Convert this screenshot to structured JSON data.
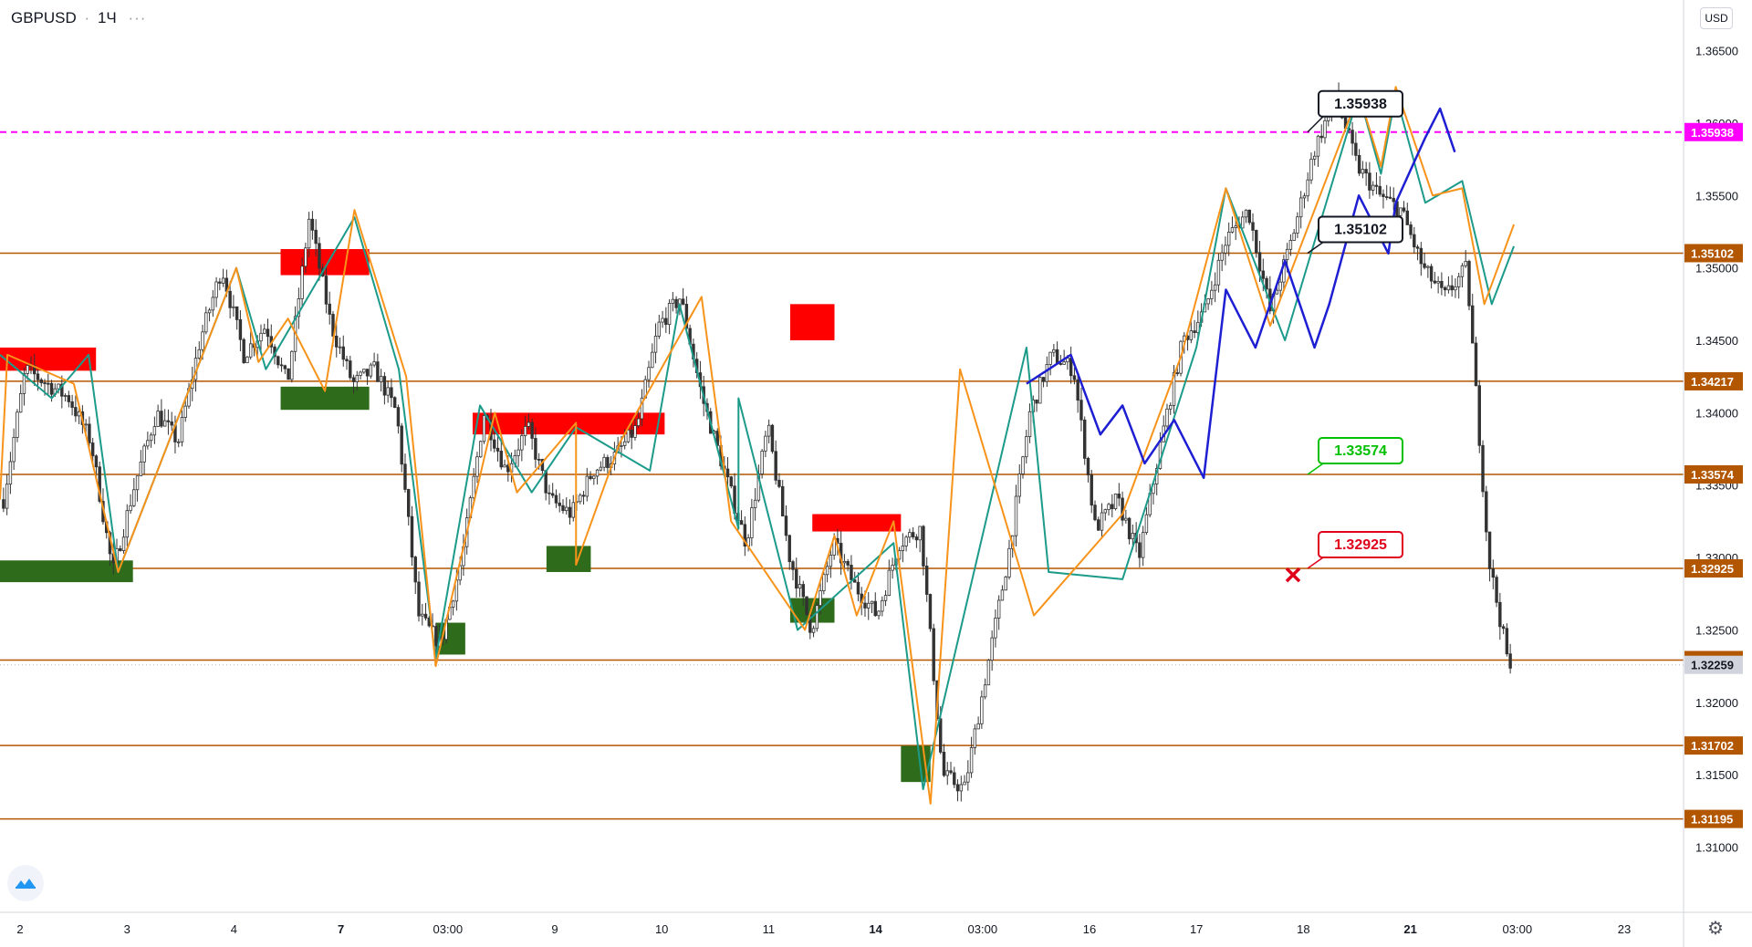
{
  "symbol": {
    "name": "GBPUSD",
    "interval": "1Ч",
    "more": "···"
  },
  "currency_button": "USD",
  "chart_data": {
    "type": "candlestick",
    "instrument": "GBPUSD",
    "interval": "1Ч",
    "ylim": [
      1.3055,
      1.3685
    ],
    "y_ticks": [
      "1.36500",
      "1.36000",
      "1.35500",
      "1.35000",
      "1.34500",
      "1.34000",
      "1.33500",
      "1.33000",
      "1.32500",
      "1.32000",
      "1.31500",
      "1.31000"
    ],
    "x_ticks": [
      "2",
      "3",
      "4",
      "7",
      "03:00",
      "9",
      "10",
      "11",
      "14",
      "03:00",
      "16",
      "17",
      "18",
      "21",
      "03:00",
      "23"
    ],
    "bold_x_ticks": [
      "7",
      "14",
      "21"
    ],
    "last_price": "1.32259",
    "price_path": [
      1.334,
      1.343,
      1.342,
      1.341,
      1.338,
      1.329,
      1.335,
      1.34,
      1.338,
      1.345,
      1.35,
      1.344,
      1.346,
      1.342,
      1.3535,
      1.346,
      1.342,
      1.343,
      1.34,
      1.326,
      1.324,
      1.33,
      1.34,
      1.336,
      1.339,
      1.334,
      1.333,
      1.336,
      1.337,
      1.339,
      1.346,
      1.348,
      1.341,
      1.336,
      1.331,
      1.339,
      1.33,
      1.325,
      1.331,
      1.328,
      1.326,
      1.331,
      1.332,
      1.315,
      1.314,
      1.322,
      1.33,
      1.34,
      1.344,
      1.343,
      1.332,
      1.334,
      1.33,
      1.338,
      1.345,
      1.347,
      1.352,
      1.354,
      1.347,
      1.352,
      1.358,
      1.362,
      1.357,
      1.355,
      1.354,
      1.35,
      1.348,
      1.35,
      1.33,
      1.322
    ],
    "horizontal_levels": [
      {
        "value": 1.35102,
        "label": "1.35102",
        "color": "#b35600"
      },
      {
        "value": 1.34217,
        "label": "1.34217",
        "color": "#b35600"
      },
      {
        "value": 1.33574,
        "label": "1.33574",
        "color": "#b35600"
      },
      {
        "value": 1.32925,
        "label": "1.32925",
        "color": "#b35600"
      },
      {
        "value": 1.32292,
        "label": "1.32292",
        "color": "#b35600"
      },
      {
        "value": 1.31702,
        "label": "1.31702",
        "color": "#b35600"
      },
      {
        "value": 1.31195,
        "label": "1.31195",
        "color": "#b35600"
      }
    ],
    "alert_level": {
      "value": 1.35938,
      "label": "1.35938",
      "color": "#ff00ff"
    },
    "last_price_label": {
      "value": 1.32259,
      "label": "1.32259",
      "color": "#d1d4dc"
    },
    "supply_zones": [
      {
        "t0": 0,
        "t1": 1.3,
        "hi": 1.3445,
        "lo": 1.3429
      },
      {
        "t0": 3.8,
        "t1": 5.0,
        "hi": 1.3513,
        "lo": 1.3495
      },
      {
        "t0": 10.7,
        "t1": 11.3,
        "hi": 1.3475,
        "lo": 1.345
      },
      {
        "t0": 6.4,
        "t1": 9.0,
        "hi": 1.34,
        "lo": 1.3385
      },
      {
        "t0": 11.0,
        "t1": 12.2,
        "hi": 1.333,
        "lo": 1.3318
      }
    ],
    "demand_zones": [
      {
        "t0": 0,
        "t1": 1.8,
        "hi": 1.3298,
        "lo": 1.3283
      },
      {
        "t0": 3.8,
        "t1": 5.0,
        "hi": 1.3418,
        "lo": 1.3402
      },
      {
        "t0": 5.9,
        "t1": 6.3,
        "hi": 1.3255,
        "lo": 1.3233
      },
      {
        "t0": 7.4,
        "t1": 8.0,
        "hi": 1.3308,
        "lo": 1.329
      },
      {
        "t0": 10.7,
        "t1": 11.3,
        "hi": 1.3272,
        "lo": 1.3255
      },
      {
        "t0": 12.2,
        "t1": 12.6,
        "hi": 1.317,
        "lo": 1.3145
      }
    ],
    "orange_zigzag": [
      [
        0,
        1.334
      ],
      [
        0.1,
        1.344
      ],
      [
        1.0,
        1.342
      ],
      [
        1.6,
        1.329
      ],
      [
        3.2,
        1.35
      ],
      [
        3.5,
        1.3435
      ],
      [
        3.9,
        1.3465
      ],
      [
        4.4,
        1.3415
      ],
      [
        4.8,
        1.354
      ],
      [
        5.5,
        1.3425
      ],
      [
        5.9,
        1.3225
      ],
      [
        6.7,
        1.34
      ],
      [
        7.0,
        1.3345
      ],
      [
        7.8,
        1.3393
      ],
      [
        7.8,
        1.3295
      ],
      [
        8.4,
        1.338
      ],
      [
        9.5,
        1.348
      ],
      [
        9.9,
        1.3325
      ],
      [
        10.9,
        1.325
      ],
      [
        11.3,
        1.3315
      ],
      [
        11.6,
        1.326
      ],
      [
        12.1,
        1.3325
      ],
      [
        12.6,
        1.313
      ],
      [
        13.0,
        1.343
      ],
      [
        14.0,
        1.326
      ],
      [
        15.2,
        1.333
      ],
      [
        16.0,
        1.344
      ],
      [
        16.6,
        1.3555
      ],
      [
        17.2,
        1.346
      ],
      [
        18.4,
        1.362
      ],
      [
        18.7,
        1.357
      ],
      [
        18.9,
        1.3625
      ],
      [
        19.4,
        1.355
      ],
      [
        19.8,
        1.3555
      ],
      [
        20.1,
        1.3475
      ],
      [
        20.5,
        1.353
      ]
    ],
    "teal_zigzag": [
      [
        0,
        1.344
      ],
      [
        0.7,
        1.341
      ],
      [
        1.2,
        1.344
      ],
      [
        1.6,
        1.329
      ],
      [
        3.2,
        1.35
      ],
      [
        3.6,
        1.343
      ],
      [
        4.8,
        1.3535
      ],
      [
        5.4,
        1.343
      ],
      [
        5.9,
        1.323
      ],
      [
        6.5,
        1.3405
      ],
      [
        7.2,
        1.3345
      ],
      [
        7.8,
        1.339
      ],
      [
        8.8,
        1.336
      ],
      [
        9.2,
        1.3475
      ],
      [
        10.0,
        1.332
      ],
      [
        10.0,
        1.341
      ],
      [
        10.8,
        1.325
      ],
      [
        12.1,
        1.331
      ],
      [
        12.5,
        1.314
      ],
      [
        13.9,
        1.3445
      ],
      [
        14.2,
        1.329
      ],
      [
        15.2,
        1.3285
      ],
      [
        16.2,
        1.3445
      ],
      [
        16.6,
        1.3555
      ],
      [
        17.4,
        1.345
      ],
      [
        18.4,
        1.362
      ],
      [
        18.7,
        1.3565
      ],
      [
        18.9,
        1.362
      ],
      [
        19.3,
        1.3545
      ],
      [
        19.8,
        1.356
      ],
      [
        20.2,
        1.3475
      ],
      [
        20.5,
        1.3515
      ]
    ],
    "blue_zigzag": [
      [
        13.9,
        1.342
      ],
      [
        14.5,
        1.344
      ],
      [
        14.9,
        1.3385
      ],
      [
        15.2,
        1.3405
      ],
      [
        15.5,
        1.3365
      ],
      [
        15.9,
        1.3395
      ],
      [
        16.3,
        1.3355
      ],
      [
        16.6,
        1.3485
      ],
      [
        17.0,
        1.3445
      ],
      [
        17.4,
        1.3505
      ],
      [
        17.8,
        1.3445
      ],
      [
        18.0,
        1.3475
      ],
      [
        18.4,
        1.355
      ],
      [
        18.8,
        1.351
      ],
      [
        18.9,
        1.3545
      ],
      [
        19.3,
        1.359
      ],
      [
        19.5,
        1.361
      ],
      [
        19.7,
        1.358
      ]
    ],
    "annotations": [
      {
        "text": "1.35938",
        "price": 1.35938,
        "style": "dark"
      },
      {
        "text": "1.35102",
        "price": 1.35102,
        "style": "dark"
      },
      {
        "text": "1.33574",
        "price": 1.33574,
        "style": "green"
      },
      {
        "text": "1.32925",
        "price": 1.32925,
        "style": "red"
      }
    ]
  },
  "colors": {
    "up": "#333333",
    "down": "#333333",
    "orange": "#f7931a",
    "teal": "#1c9a8a",
    "blue": "#1e1ed2",
    "supply": "#ff0000",
    "demand": "#2e6b1a",
    "level": "#b35600",
    "alert": "#ff00ff",
    "green_label": "#00c000",
    "red_label": "#e0001b"
  },
  "icons": {
    "settings": "gear-icon",
    "logo": "tradingview-logo-icon",
    "cross": "cross-marker-icon"
  }
}
